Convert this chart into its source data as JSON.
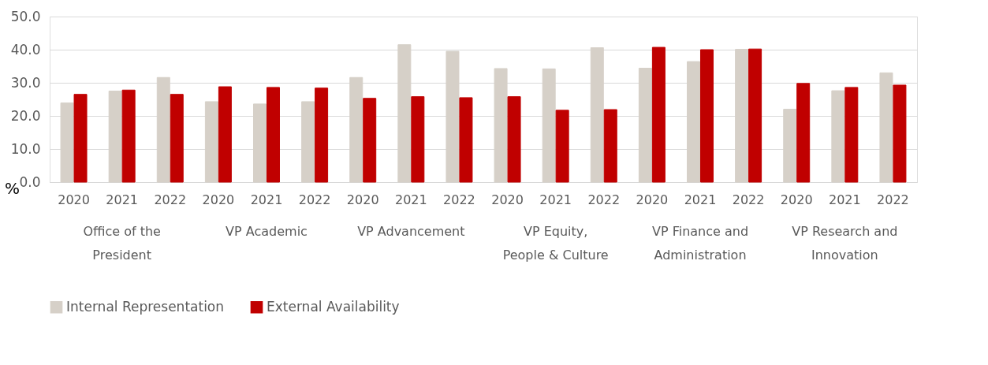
{
  "chart_data": {
    "type": "bar",
    "ylabel": "%",
    "categories": [
      "2020",
      "2021",
      "2022",
      "2020",
      "2021",
      "2022",
      "2020",
      "2021",
      "2022",
      "2020",
      "2021",
      "2022",
      "2020",
      "2021",
      "2022",
      "2020",
      "2021",
      "2022"
    ],
    "annotations": [
      "Office of the\nPresident",
      "VP Academic",
      "VP Advancement",
      "VP Equity,\nPeople & Culture",
      "VP Finance and\nAdministration",
      "VP Research and\nInnovation"
    ],
    "series": [
      {
        "name": "Internal Representation",
        "color": "#d6d0c8",
        "values": [
          23.9,
          27.5,
          31.6,
          24.3,
          23.6,
          24.3,
          31.6,
          41.5,
          39.5,
          34.3,
          34.2,
          40.6,
          34.4,
          36.4,
          40.1,
          22.0,
          27.6,
          33.0
        ]
      },
      {
        "name": "External Availability",
        "color": "#c00000",
        "values": [
          26.5,
          27.8,
          26.5,
          28.8,
          28.6,
          28.4,
          25.3,
          25.8,
          25.5,
          25.8,
          21.7,
          21.9,
          40.7,
          40.0,
          40.2,
          29.8,
          28.6,
          29.3
        ]
      }
    ],
    "ylim": [
      0,
      50
    ],
    "yticks": [
      {
        "value": 0,
        "label": "0.0"
      },
      {
        "value": 10,
        "label": "10.0"
      },
      {
        "value": 20,
        "label": "20.0"
      },
      {
        "value": 30,
        "label": "30.0"
      },
      {
        "value": 40,
        "label": "40.0"
      },
      {
        "value": 50,
        "label": "50.0"
      }
    ],
    "grid": "y",
    "legend": "bottom"
  }
}
